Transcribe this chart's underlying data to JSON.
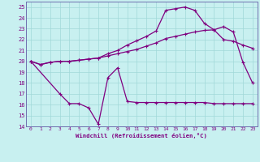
{
  "xlabel": "Windchill (Refroidissement éolien,°C)",
  "bg_color": "#c8f0f0",
  "line_color": "#800080",
  "grid_color": "#a0d8d8",
  "xlim": [
    -0.5,
    23.5
  ],
  "ylim": [
    14,
    25.5
  ],
  "xticks": [
    0,
    1,
    2,
    3,
    4,
    5,
    6,
    7,
    8,
    9,
    10,
    11,
    12,
    13,
    14,
    15,
    16,
    17,
    18,
    19,
    20,
    21,
    22,
    23
  ],
  "yticks": [
    14,
    15,
    16,
    17,
    18,
    19,
    20,
    21,
    22,
    23,
    24,
    25
  ],
  "curve_top_x": [
    0,
    1,
    2,
    3,
    4,
    5,
    6,
    7,
    8,
    9,
    10,
    11,
    12,
    13,
    14,
    15,
    16,
    17,
    18,
    19,
    20,
    21,
    22,
    23
  ],
  "curve_top_y": [
    20.0,
    19.7,
    19.9,
    20.0,
    20.0,
    20.1,
    20.2,
    20.3,
    20.7,
    21.0,
    21.5,
    21.9,
    22.3,
    22.8,
    24.7,
    24.85,
    25.0,
    24.7,
    23.5,
    22.9,
    23.2,
    22.7,
    19.9,
    18.0
  ],
  "curve_mid_x": [
    0,
    1,
    2,
    3,
    4,
    5,
    6,
    7,
    8,
    9,
    10,
    11,
    12,
    13,
    14,
    15,
    16,
    17,
    18,
    19,
    20,
    21,
    22,
    23
  ],
  "curve_mid_y": [
    20.0,
    19.7,
    19.9,
    20.0,
    20.0,
    20.1,
    20.2,
    20.3,
    20.5,
    20.7,
    20.9,
    21.1,
    21.4,
    21.7,
    22.1,
    22.3,
    22.5,
    22.7,
    22.85,
    22.9,
    22.0,
    21.85,
    21.5,
    21.2
  ],
  "curve_bot_x": [
    0,
    3,
    4,
    5,
    6,
    7,
    8,
    9,
    10,
    11,
    12,
    13,
    14,
    15,
    16,
    17,
    18,
    19,
    20,
    21,
    22,
    23
  ],
  "curve_bot_y": [
    20.0,
    17.0,
    16.1,
    16.1,
    15.7,
    14.2,
    18.5,
    19.4,
    16.3,
    16.2,
    16.2,
    16.2,
    16.2,
    16.2,
    16.2,
    16.2,
    16.2,
    16.1,
    16.1,
    16.1,
    16.1,
    16.1
  ]
}
